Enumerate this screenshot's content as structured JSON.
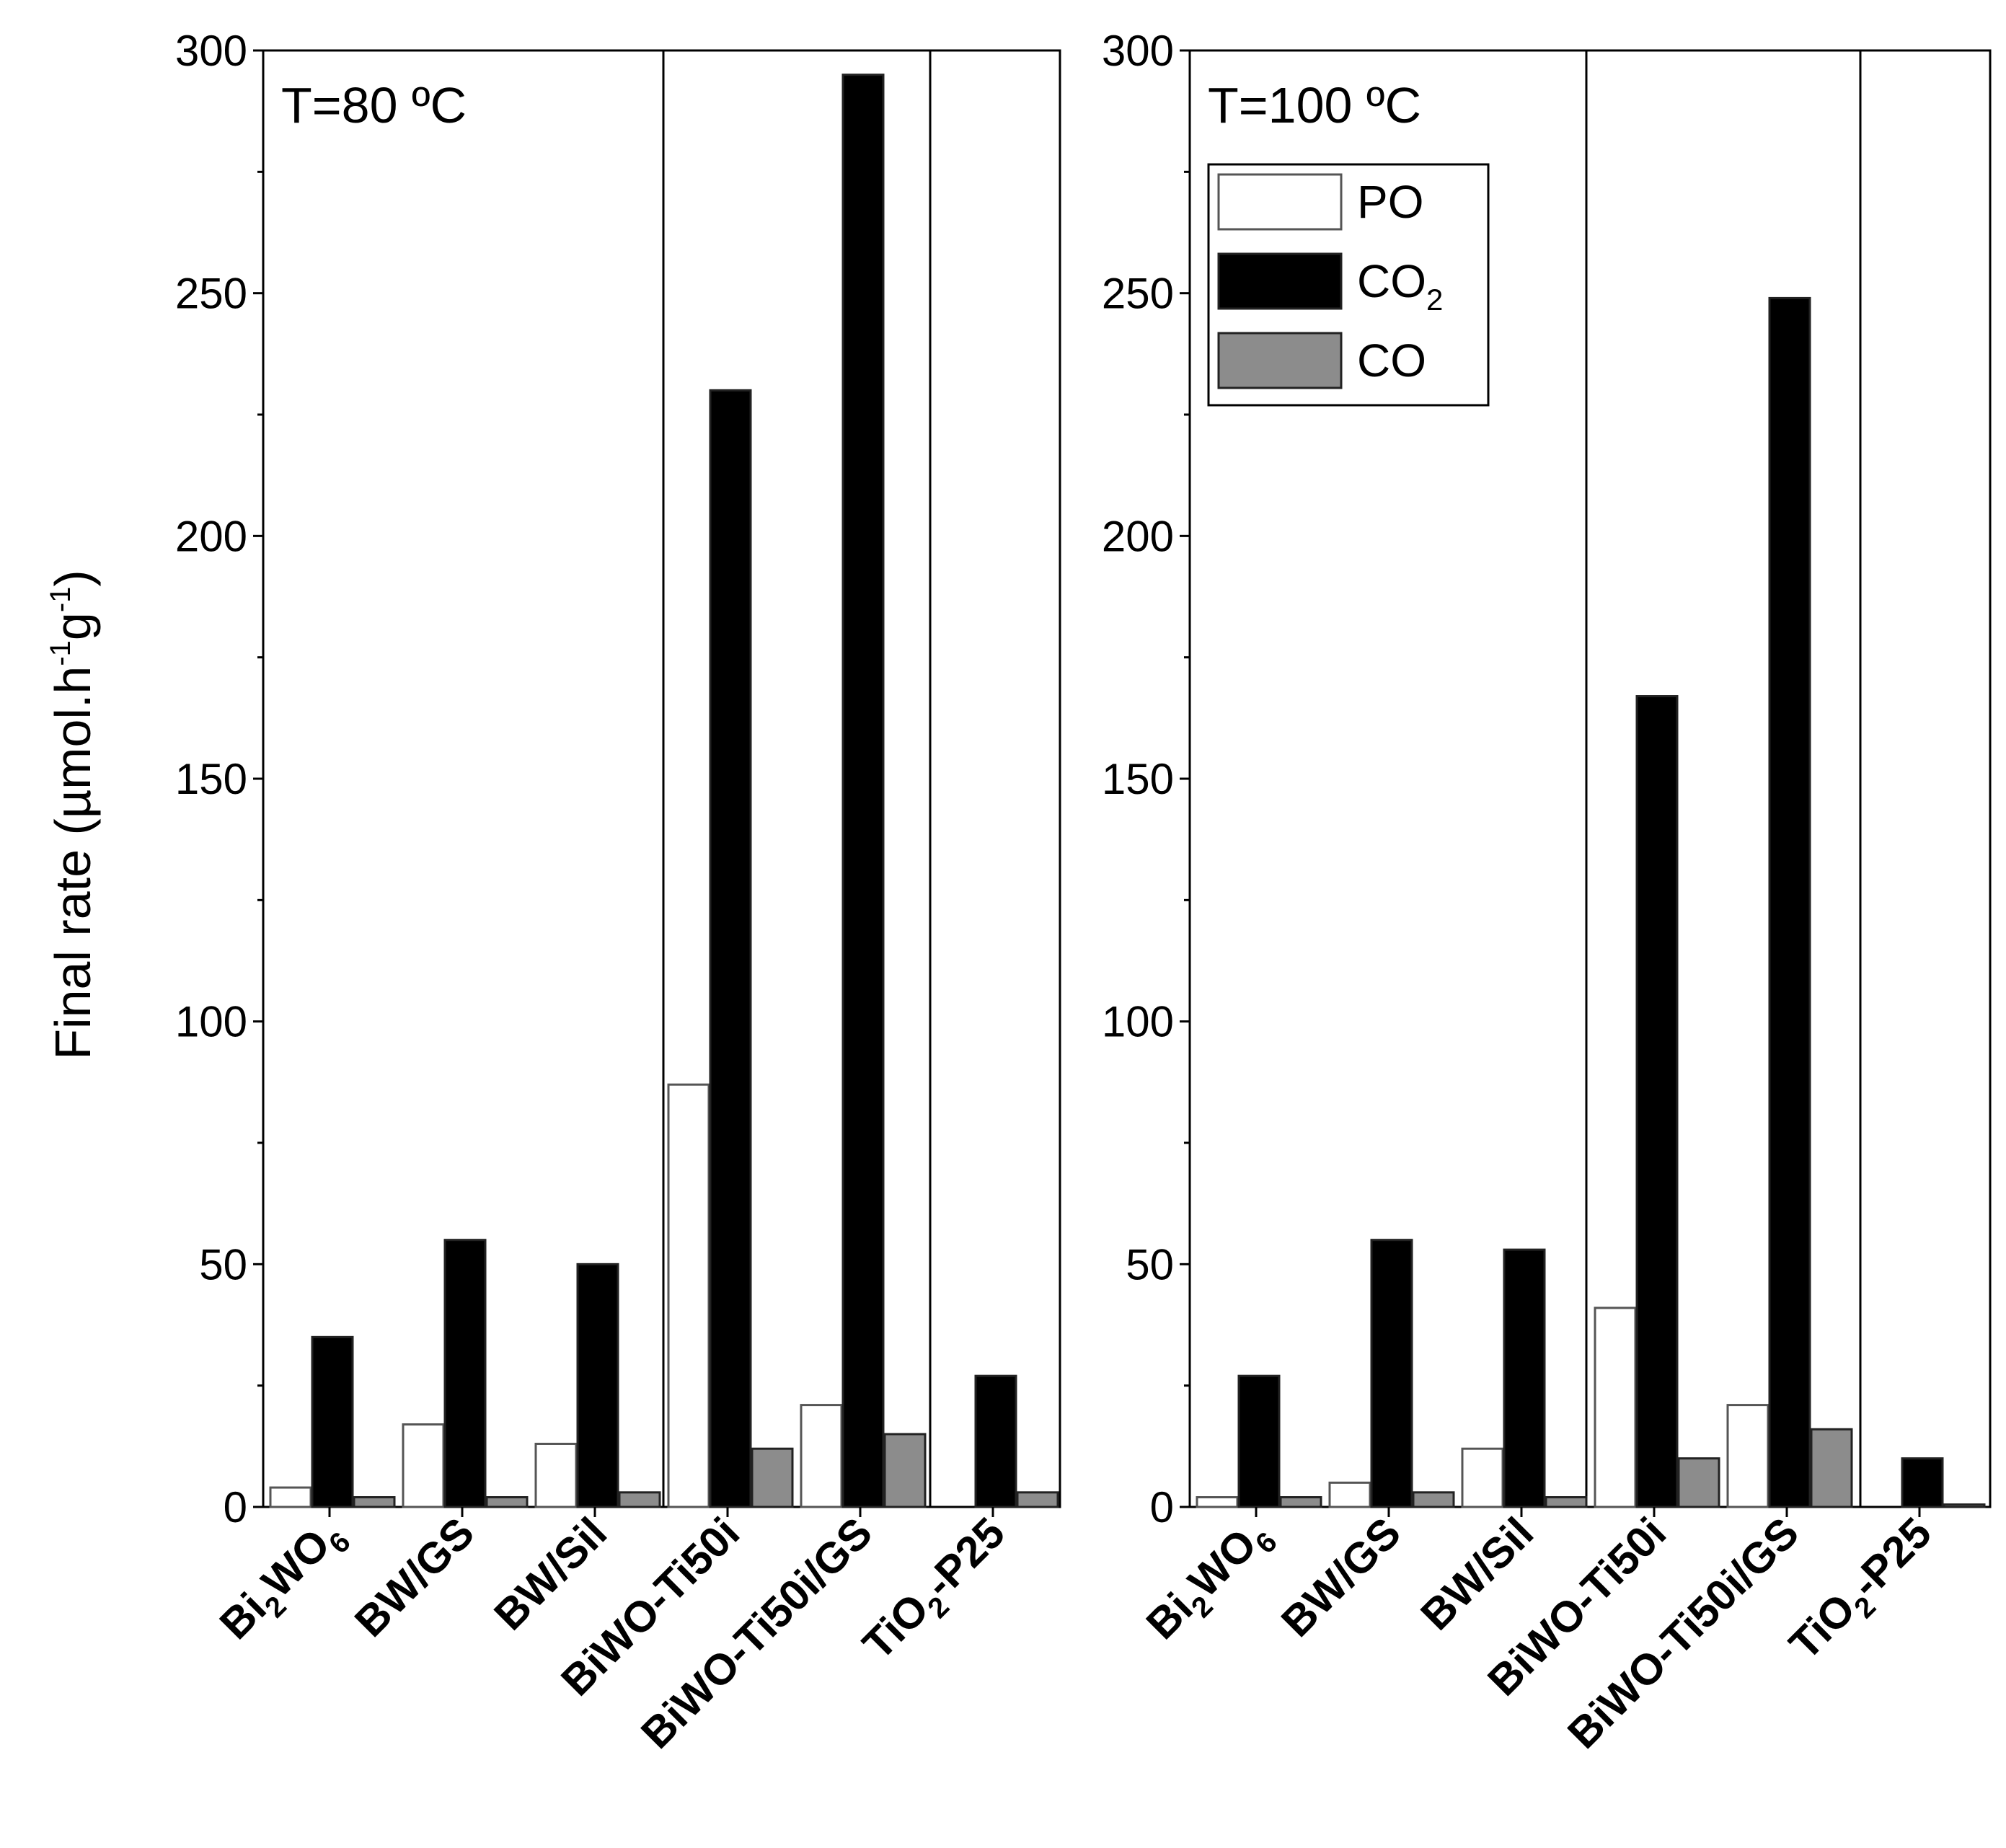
{
  "chart_data": {
    "type": "bar",
    "ylabel": {
      "main": "Final rate (µmol.h",
      "sup1": "-1",
      "mid": "g",
      "sup2": "-1",
      "tail": ")"
    },
    "ylim": [
      0,
      300
    ],
    "yticks": [
      "0",
      "50",
      "100",
      "150",
      "200",
      "250",
      "300"
    ],
    "categories": [
      {
        "main": "Bi",
        "sub": "2",
        "tail": "WO",
        "sub2": "6"
      },
      {
        "main": "BW/GS",
        "sub": "",
        "tail": "",
        "sub2": ""
      },
      {
        "main": "BW/Sil",
        "sub": "",
        "tail": "",
        "sub2": ""
      },
      {
        "main": "BiWO-Ti50i",
        "sub": "",
        "tail": "",
        "sub2": ""
      },
      {
        "main": "BiWO-Ti50i/GS",
        "sub": "",
        "tail": "",
        "sub2": ""
      },
      {
        "main": "TiO",
        "sub": "2",
        "tail": "-P25",
        "sub2": ""
      }
    ],
    "legend": [
      {
        "label": "PO",
        "sub": "",
        "color": "#ffffff"
      },
      {
        "label": "CO",
        "sub": "2",
        "color": "#000000"
      },
      {
        "label": "CO",
        "sub": "",
        "color": "#8c8c8c"
      }
    ],
    "panels": [
      {
        "title": "T=80 ºC",
        "series": [
          {
            "name": "PO",
            "values": [
              4,
              17,
              13,
              87,
              21,
              0
            ]
          },
          {
            "name": "CO2",
            "values": [
              35,
              55,
              50,
              230,
              295,
              27
            ]
          },
          {
            "name": "CO",
            "values": [
              2,
              2,
              3,
              12,
              15,
              3
            ]
          }
        ]
      },
      {
        "title": "T=100 ºC",
        "series": [
          {
            "name": "PO",
            "values": [
              2,
              5,
              12,
              41,
              21,
              0
            ]
          },
          {
            "name": "CO2",
            "values": [
              27,
              55,
              53,
              167,
              249,
              10
            ]
          },
          {
            "name": "CO",
            "values": [
              2,
              3,
              2,
              10,
              16,
              0.5
            ]
          }
        ]
      }
    ]
  }
}
